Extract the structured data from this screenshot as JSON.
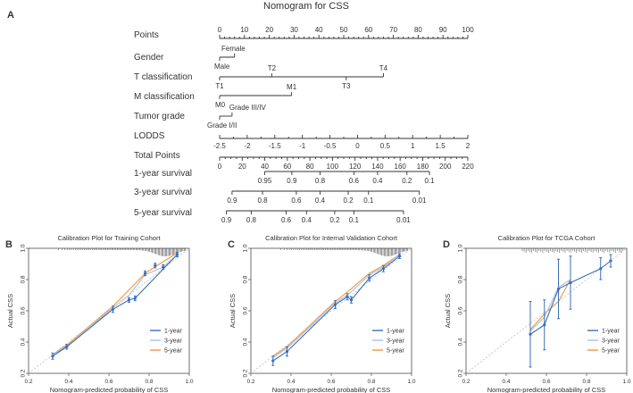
{
  "panel_labels": {
    "a": "A",
    "b": "B",
    "c": "C",
    "d": "D"
  },
  "nomogram": {
    "title": "Nomogram for CSS",
    "rows": [
      {
        "key": "points",
        "label": "Points"
      },
      {
        "key": "gender",
        "label": "Gender"
      },
      {
        "key": "t",
        "label": "T classification"
      },
      {
        "key": "m",
        "label": "M classification"
      },
      {
        "key": "grade",
        "label": "Tumor grade"
      },
      {
        "key": "lodds",
        "label": "LODDS"
      },
      {
        "key": "total",
        "label": "Total Points"
      },
      {
        "key": "s1",
        "label": "1-year survival"
      },
      {
        "key": "s3",
        "label": "3-year survival"
      },
      {
        "key": "s5",
        "label": "5-year survival"
      }
    ],
    "points_ticks": [
      "0",
      "10",
      "20",
      "30",
      "40",
      "50",
      "60",
      "70",
      "80",
      "90",
      "100"
    ],
    "gender": {
      "low": "Male",
      "high": "Female",
      "points": 6
    },
    "t_class": {
      "labels": [
        "T1",
        "T2",
        "T3",
        "T4"
      ],
      "points": [
        0,
        21,
        51,
        66
      ]
    },
    "m_class": {
      "labels": [
        "M0",
        "M1"
      ],
      "points": [
        0,
        29
      ]
    },
    "grade": {
      "low": "Grade I/II",
      "high": "Grade III/IV",
      "points": 5
    },
    "lodds_ticks": [
      "-2.5",
      "-2",
      "-1.5",
      "-1",
      "-0.5",
      "0",
      "0.5",
      "1",
      "1.5",
      "2"
    ],
    "total_ticks": [
      "0",
      "20",
      "40",
      "60",
      "80",
      "100",
      "120",
      "140",
      "160",
      "180",
      "200",
      "220"
    ],
    "survival_1y": [
      {
        "label": "0.95",
        "tp": 40
      },
      {
        "label": "0.9",
        "tp": 64
      },
      {
        "label": "0.8",
        "tp": 89
      },
      {
        "label": "0.6",
        "tp": 119
      },
      {
        "label": "0.4",
        "tp": 140
      },
      {
        "label": "0.2",
        "tp": 166
      },
      {
        "label": "0.1",
        "tp": 186
      }
    ],
    "survival_3y": [
      {
        "label": "0.9",
        "tp": 11
      },
      {
        "label": "0.8",
        "tp": 38
      },
      {
        "label": "0.6",
        "tp": 68
      },
      {
        "label": "0.4",
        "tp": 89
      },
      {
        "label": "0.2",
        "tp": 114
      },
      {
        "label": "0.1",
        "tp": 132
      },
      {
        "label": "0.01",
        "tp": 177
      }
    ],
    "survival_5y": [
      {
        "label": "0.9",
        "tp": 6
      },
      {
        "label": "0.8",
        "tp": 28
      },
      {
        "label": "0.6",
        "tp": 59
      },
      {
        "label": "0.4",
        "tp": 77
      },
      {
        "label": "0.2",
        "tp": 102
      },
      {
        "label": "0.1",
        "tp": 119
      },
      {
        "label": "0.01",
        "tp": 163
      }
    ]
  },
  "colors": {
    "one_year": "#3b6fb6",
    "three_year": "#a7bfe3",
    "five_year": "#f0953b",
    "ideal": "#bbbbbb",
    "axis": "#333333"
  },
  "chart_data": [
    {
      "type": "line",
      "title": "Calibration Plot for Training Cohort",
      "xlabel": "Nomogram-predicted probability of CSS",
      "ylabel": "Actual CSS",
      "xlim": [
        0.2,
        1.0
      ],
      "ylim": [
        0.2,
        1.0
      ],
      "xticks": [
        "0.2",
        "0.4",
        "0.6",
        "0.8",
        "1.0"
      ],
      "yticks": [
        "0.2",
        "0.4",
        "0.6",
        "0.8",
        "1.0"
      ],
      "legend": "bottom-right",
      "series": [
        {
          "name": "1-year",
          "points": [
            [
              0.32,
              0.31,
              0.02
            ],
            [
              0.39,
              0.37,
              0.015
            ],
            [
              0.62,
              0.61,
              0.02
            ],
            [
              0.7,
              0.67,
              0.015
            ],
            [
              0.73,
              0.68,
              0.015
            ],
            [
              0.94,
              0.96,
              0.015
            ]
          ]
        },
        {
          "name": "3-year",
          "points": [
            [
              0.32,
              0.32
            ],
            [
              0.4,
              0.38
            ],
            [
              0.62,
              0.62
            ],
            [
              0.7,
              0.7
            ],
            [
              0.78,
              0.83
            ],
            [
              0.87,
              0.88
            ],
            [
              0.94,
              0.96
            ]
          ]
        },
        {
          "name": "5-year",
          "points": [
            [
              0.32,
              0.32
            ],
            [
              0.4,
              0.39
            ],
            [
              0.62,
              0.63
            ],
            [
              0.69,
              0.72
            ],
            [
              0.78,
              0.84
            ],
            [
              0.84,
              0.89
            ],
            [
              0.94,
              0.97
            ]
          ]
        }
      ],
      "errorbars": [
        [
          0.78,
          0.84,
          0.015
        ],
        [
          0.83,
          0.89,
          0.015
        ],
        [
          0.87,
          0.88,
          0.015
        ]
      ]
    },
    {
      "type": "line",
      "title": "Calibration Plot for Internal Validation Cohort",
      "xlabel": "Nomogram-predicted probability of CSS",
      "ylabel": "Actual CSS",
      "xlim": [
        0.2,
        1.0
      ],
      "ylim": [
        0.2,
        1.0
      ],
      "xticks": [
        "0.2",
        "0.4",
        "0.6",
        "0.8",
        "1.0"
      ],
      "yticks": [
        "0.2",
        "0.4",
        "0.6",
        "0.8",
        "1.0"
      ],
      "legend": "bottom-right",
      "series": [
        {
          "name": "1-year",
          "points": [
            [
              0.31,
              0.28,
              0.03
            ],
            [
              0.38,
              0.34,
              0.03
            ],
            [
              0.62,
              0.64,
              0.025
            ],
            [
              0.68,
              0.69,
              0.02
            ],
            [
              0.7,
              0.67,
              0.02
            ],
            [
              0.79,
              0.81,
              0.02
            ],
            [
              0.86,
              0.87,
              0.02
            ],
            [
              0.94,
              0.95,
              0.015
            ]
          ]
        },
        {
          "name": "3-year",
          "points": [
            [
              0.31,
              0.3
            ],
            [
              0.38,
              0.36
            ],
            [
              0.62,
              0.65
            ],
            [
              0.69,
              0.71
            ],
            [
              0.79,
              0.83
            ],
            [
              0.86,
              0.88
            ],
            [
              0.94,
              0.96
            ]
          ]
        },
        {
          "name": "5-year",
          "points": [
            [
              0.31,
              0.31
            ],
            [
              0.38,
              0.37
            ],
            [
              0.62,
              0.66
            ],
            [
              0.68,
              0.72
            ],
            [
              0.79,
              0.84
            ],
            [
              0.86,
              0.89
            ],
            [
              0.94,
              0.96
            ]
          ]
        }
      ],
      "errorbars": []
    },
    {
      "type": "line",
      "title": "Calibration Plot for TCGA Cohort",
      "xlabel": "Nomogram-predicted probability of CSS",
      "ylabel": "Actual CSS",
      "xlim": [
        0.2,
        1.0
      ],
      "ylim": [
        0.2,
        1.0
      ],
      "xticks": [
        "0.2",
        "0.4",
        "0.6",
        "0.8",
        "1.0"
      ],
      "yticks": [
        "0.2",
        "0.4",
        "0.6",
        "0.8",
        "1.0"
      ],
      "legend": "bottom-right",
      "series": [
        {
          "name": "1-year",
          "points": [
            [
              0.52,
              0.45,
              0.21
            ],
            [
              0.59,
              0.51,
              0.16
            ],
            [
              0.66,
              0.74,
              0.19
            ],
            [
              0.72,
              0.78,
              0.17
            ],
            [
              0.87,
              0.87,
              0.07
            ],
            [
              0.92,
              0.92,
              0.04
            ]
          ]
        },
        {
          "name": "3-year",
          "points": [
            [
              0.52,
              0.47
            ],
            [
              0.59,
              0.56
            ],
            [
              0.66,
              0.75
            ],
            [
              0.72,
              0.8
            ]
          ]
        },
        {
          "name": "5-year",
          "points": [
            [
              0.52,
              0.48
            ],
            [
              0.59,
              0.58
            ],
            [
              0.66,
              0.66
            ],
            [
              0.72,
              0.8
            ]
          ]
        }
      ],
      "errorbars": []
    }
  ]
}
